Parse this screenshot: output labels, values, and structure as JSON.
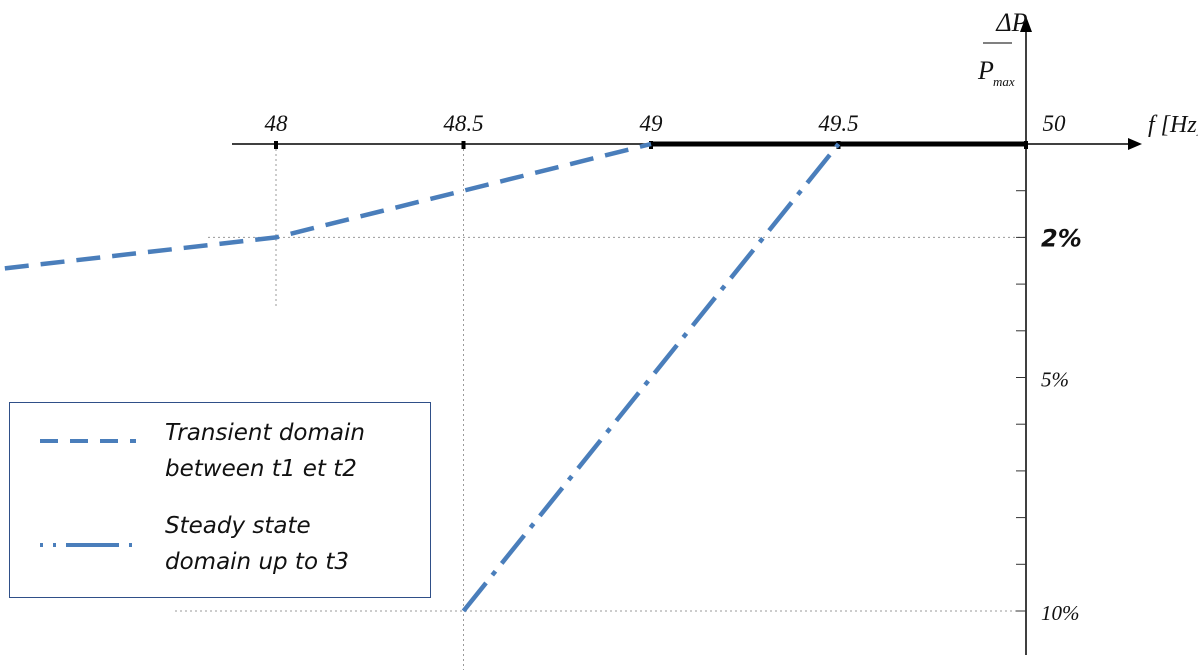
{
  "chart_data": {
    "type": "line",
    "x_axis": {
      "label": "f [Hz]",
      "ticks": [
        "48",
        "48.5",
        "49",
        "49.5",
        "50"
      ],
      "range": [
        46.8,
        50.3
      ]
    },
    "y_axis": {
      "label_numerator": "ΔP",
      "label_denominator_main": "P",
      "label_denominator_sub": "max",
      "direction": "downward",
      "ticks": [
        "2%",
        "5%",
        "10%"
      ],
      "range": [
        0,
        10.5
      ]
    },
    "series": [
      {
        "name": "Transient domain between t1 et t2",
        "style": "dashed",
        "color": "#4a7ebb",
        "points": [
          {
            "x": 46.8,
            "y": 3.1
          },
          {
            "x": 48,
            "y": 2
          },
          {
            "x": 48.5,
            "y": 1
          },
          {
            "x": 49,
            "y": 0
          }
        ]
      },
      {
        "name": "Steady state domain up to t3",
        "style": "dash-dot",
        "color": "#4a7ebb",
        "points": [
          {
            "x": 48.5,
            "y": 10
          },
          {
            "x": 49.5,
            "y": 0
          }
        ]
      }
    ],
    "reference_lines": [
      {
        "type": "horizontal",
        "y": 2,
        "style": "dotted"
      },
      {
        "type": "horizontal",
        "y": 10,
        "style": "dotted"
      },
      {
        "type": "vertical",
        "x": 48,
        "style": "dotted"
      },
      {
        "type": "vertical",
        "x": 48.5,
        "style": "dotted"
      }
    ],
    "bold_segment": {
      "from_x": 49,
      "to_x": 50
    },
    "grid": false,
    "legend_position": "bottom-left"
  },
  "legend": {
    "items": [
      {
        "label": "Transient domain\nbetween  t1 et t2"
      },
      {
        "label": "Steady state\ndomain up to t3"
      }
    ]
  }
}
